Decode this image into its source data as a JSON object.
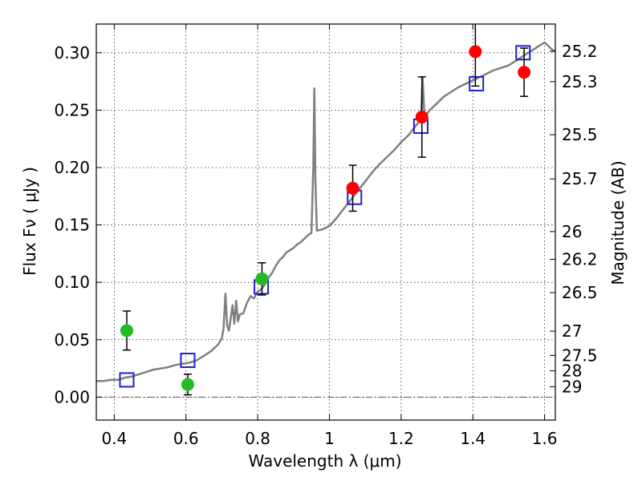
{
  "chart_data": {
    "type": "scatter",
    "xlabel": "Wavelength  λ (μm)",
    "ylabel": "Flux  Fν  ( μJy )",
    "y2label": "Magnitude (AB)",
    "xlim": [
      0.35,
      1.63
    ],
    "ylim": [
      -0.02,
      0.325
    ],
    "x_ticks": [
      0.4,
      0.6,
      0.8,
      1.0,
      1.2,
      1.4,
      1.6
    ],
    "x_tick_labels": [
      "0.4",
      "0.6",
      "0.8",
      "1",
      "1.2",
      "1.4",
      "1.6"
    ],
    "y_ticks": [
      0.0,
      0.05,
      0.1,
      0.15,
      0.2,
      0.25,
      0.3
    ],
    "y_tick_labels": [
      "0.00",
      "0.05",
      "0.10",
      "0.15",
      "0.20",
      "0.25",
      "0.30"
    ],
    "y2_ticks": [
      {
        "label": "25.2",
        "flux": 0.3013
      },
      {
        "label": "25.3",
        "flux": 0.2748
      },
      {
        "label": "25.5",
        "flux": 0.2286
      },
      {
        "label": "25.7",
        "flux": 0.1901
      },
      {
        "label": "26",
        "flux": 0.1442
      },
      {
        "label": "26.2",
        "flux": 0.12
      },
      {
        "label": "26.5",
        "flux": 0.091
      },
      {
        "label": "27",
        "flux": 0.0575
      },
      {
        "label": "27.5",
        "flux": 0.0363
      },
      {
        "label": "28",
        "flux": 0.0229
      },
      {
        "label": "29",
        "flux": 0.0091
      }
    ],
    "grid": true,
    "series": [
      {
        "type": "line",
        "color": "#808080",
        "points": [
          [
            0.35,
            0.014
          ],
          [
            0.37,
            0.014
          ],
          [
            0.39,
            0.015
          ],
          [
            0.41,
            0.015
          ],
          [
            0.43,
            0.017
          ],
          [
            0.45,
            0.018
          ],
          [
            0.47,
            0.02
          ],
          [
            0.49,
            0.022
          ],
          [
            0.51,
            0.024
          ],
          [
            0.53,
            0.025
          ],
          [
            0.55,
            0.026
          ],
          [
            0.57,
            0.028
          ],
          [
            0.59,
            0.029
          ],
          [
            0.61,
            0.03
          ],
          [
            0.63,
            0.032
          ],
          [
            0.65,
            0.036
          ],
          [
            0.67,
            0.04
          ],
          [
            0.69,
            0.046
          ],
          [
            0.7,
            0.051
          ],
          [
            0.705,
            0.06
          ],
          [
            0.71,
            0.09
          ],
          [
            0.715,
            0.062
          ],
          [
            0.72,
            0.058
          ],
          [
            0.73,
            0.08
          ],
          [
            0.735,
            0.064
          ],
          [
            0.74,
            0.084
          ],
          [
            0.745,
            0.066
          ],
          [
            0.75,
            0.072
          ],
          [
            0.76,
            0.073
          ],
          [
            0.77,
            0.082
          ],
          [
            0.78,
            0.088
          ],
          [
            0.79,
            0.086
          ],
          [
            0.8,
            0.092
          ],
          [
            0.81,
            0.094
          ],
          [
            0.82,
            0.098
          ],
          [
            0.83,
            0.104
          ],
          [
            0.84,
            0.108
          ],
          [
            0.85,
            0.114
          ],
          [
            0.86,
            0.119
          ],
          [
            0.87,
            0.122
          ],
          [
            0.88,
            0.126
          ],
          [
            0.89,
            0.128
          ],
          [
            0.9,
            0.13
          ],
          [
            0.91,
            0.133
          ],
          [
            0.92,
            0.135
          ],
          [
            0.93,
            0.138
          ],
          [
            0.94,
            0.141
          ],
          [
            0.95,
            0.143
          ],
          [
            0.955,
            0.2
          ],
          [
            0.958,
            0.269
          ],
          [
            0.961,
            0.19
          ],
          [
            0.965,
            0.145
          ],
          [
            0.98,
            0.146
          ],
          [
            1.0,
            0.149
          ],
          [
            1.02,
            0.156
          ],
          [
            1.04,
            0.164
          ],
          [
            1.06,
            0.172
          ],
          [
            1.08,
            0.18
          ],
          [
            1.1,
            0.188
          ],
          [
            1.12,
            0.196
          ],
          [
            1.14,
            0.203
          ],
          [
            1.16,
            0.209
          ],
          [
            1.18,
            0.215
          ],
          [
            1.2,
            0.222
          ],
          [
            1.22,
            0.228
          ],
          [
            1.24,
            0.236
          ],
          [
            1.255,
            0.242
          ],
          [
            1.26,
            0.278
          ],
          [
            1.265,
            0.244
          ],
          [
            1.28,
            0.25
          ],
          [
            1.3,
            0.256
          ],
          [
            1.32,
            0.262
          ],
          [
            1.34,
            0.266
          ],
          [
            1.36,
            0.27
          ],
          [
            1.38,
            0.273
          ],
          [
            1.4,
            0.276
          ],
          [
            1.42,
            0.279
          ],
          [
            1.44,
            0.282
          ],
          [
            1.46,
            0.285
          ],
          [
            1.48,
            0.287
          ],
          [
            1.5,
            0.289
          ],
          [
            1.52,
            0.293
          ],
          [
            1.54,
            0.297
          ],
          [
            1.56,
            0.301
          ],
          [
            1.58,
            0.305
          ],
          [
            1.6,
            0.309
          ],
          [
            1.62,
            0.303
          ],
          [
            1.63,
            0.301
          ]
        ]
      },
      {
        "type": "scatter",
        "marker": "square",
        "color": "#1f1fd2",
        "points": [
          [
            0.435,
            0.015
          ],
          [
            0.605,
            0.032
          ],
          [
            0.81,
            0.096
          ],
          [
            1.07,
            0.174
          ],
          [
            1.255,
            0.236
          ],
          [
            1.41,
            0.273
          ],
          [
            1.54,
            0.3
          ]
        ]
      },
      {
        "type": "scatter",
        "marker": "circle",
        "color": "#22bb22",
        "points": [
          {
            "x": 0.435,
            "y": 0.058,
            "err": 0.017
          },
          {
            "x": 0.605,
            "y": 0.011,
            "err": 0.009
          },
          {
            "x": 0.812,
            "y": 0.103,
            "err": 0.014
          }
        ]
      },
      {
        "type": "scatter",
        "marker": "circle",
        "color": "#ff0000",
        "points": [
          {
            "x": 1.065,
            "y": 0.182,
            "err": 0.02
          },
          {
            "x": 1.258,
            "y": 0.244,
            "err": 0.035
          },
          {
            "x": 1.407,
            "y": 0.301,
            "err": 0.03
          },
          {
            "x": 1.543,
            "y": 0.283,
            "err": 0.021
          }
        ]
      }
    ]
  }
}
